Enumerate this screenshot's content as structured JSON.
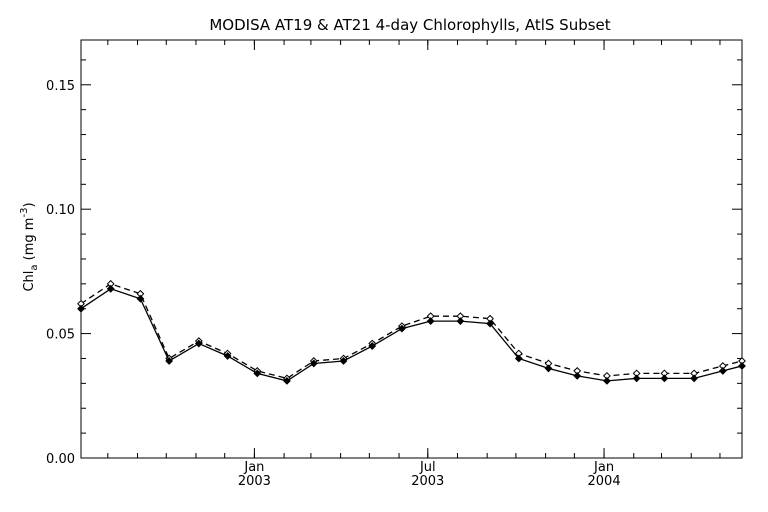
{
  "chart_data": {
    "type": "line",
    "title": "MODISA AT19 & AT21 4-day Chlorophylls, AtlS Subset",
    "ylabel_main": "Chl",
    "ylabel_sub": "a",
    "ylabel_units": " (mg m",
    "ylabel_sup": "-3",
    "ylabel_close": ")",
    "ylim": [
      0.0,
      0.168
    ],
    "yticks": [
      {
        "value": 0.0,
        "label": "0.00"
      },
      {
        "value": 0.05,
        "label": "0.05"
      },
      {
        "value": 0.1,
        "label": "0.10"
      },
      {
        "value": 0.15,
        "label": "0.15"
      }
    ],
    "xlim": [
      "2002-07-04",
      "2004-05-24"
    ],
    "xticks": [
      {
        "date": "2003-01-01",
        "month": "Jan",
        "year": "2003"
      },
      {
        "date": "2003-07-01",
        "month": "Jul",
        "year": "2003"
      },
      {
        "date": "2004-01-01",
        "month": "Jan",
        "year": "2004"
      }
    ],
    "grid": false,
    "series": [
      {
        "dash": "6,4",
        "marker": "open-diamond",
        "x": [
          "2002-07-04",
          "2002-08-04",
          "2002-09-04",
          "2002-10-04",
          "2002-11-04",
          "2002-12-04",
          "2003-01-04",
          "2003-02-04",
          "2003-03-04",
          "2003-04-04",
          "2003-05-04",
          "2003-06-04",
          "2003-07-04",
          "2003-08-04",
          "2003-09-04",
          "2003-10-04",
          "2003-11-04",
          "2003-12-04",
          "2004-01-04",
          "2004-02-04",
          "2004-03-04",
          "2004-04-04",
          "2004-05-04",
          "2004-05-24"
        ],
        "values": [
          0.062,
          0.07,
          0.066,
          0.04,
          0.047,
          0.042,
          0.035,
          0.032,
          0.039,
          0.04,
          0.046,
          0.053,
          0.057,
          0.057,
          0.056,
          0.042,
          0.038,
          0.035,
          0.033,
          0.034,
          0.034,
          0.034,
          0.037,
          0.039
        ]
      },
      {
        "dash": "",
        "marker": "filled-diamond",
        "x": [
          "2002-07-04",
          "2002-08-04",
          "2002-09-04",
          "2002-10-04",
          "2002-11-04",
          "2002-12-04",
          "2003-01-04",
          "2003-02-04",
          "2003-03-04",
          "2003-04-04",
          "2003-05-04",
          "2003-06-04",
          "2003-07-04",
          "2003-08-04",
          "2003-09-04",
          "2003-10-04",
          "2003-11-04",
          "2003-12-04",
          "2004-01-04",
          "2004-02-04",
          "2004-03-04",
          "2004-04-04",
          "2004-05-04",
          "2004-05-24"
        ],
        "values": [
          0.06,
          0.068,
          0.064,
          0.039,
          0.046,
          0.041,
          0.034,
          0.031,
          0.038,
          0.039,
          0.045,
          0.052,
          0.055,
          0.055,
          0.054,
          0.04,
          0.036,
          0.033,
          0.031,
          0.032,
          0.032,
          0.032,
          0.035,
          0.037
        ]
      }
    ]
  }
}
